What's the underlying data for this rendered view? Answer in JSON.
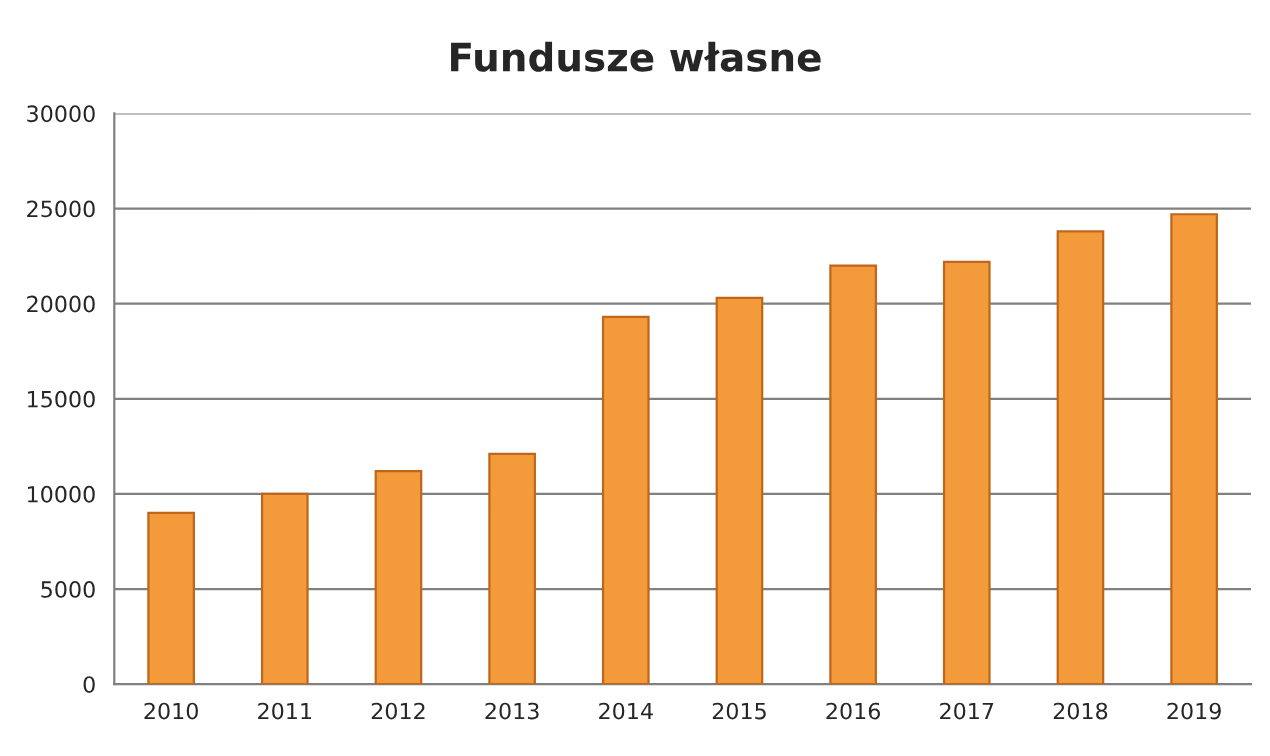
{
  "chart_data": {
    "type": "bar",
    "title": "Fundusze własne",
    "categories": [
      "2010",
      "2011",
      "2012",
      "2013",
      "2014",
      "2015",
      "2016",
      "2017",
      "2018",
      "2019"
    ],
    "values": [
      9000,
      10000,
      11200,
      12100,
      19300,
      20300,
      22000,
      22200,
      23800,
      24700
    ],
    "color": "#f39a3a",
    "ylim": [
      0,
      30000
    ],
    "yticks": [
      0,
      5000,
      10000,
      15000,
      20000,
      25000,
      30000
    ],
    "grid": "y"
  }
}
